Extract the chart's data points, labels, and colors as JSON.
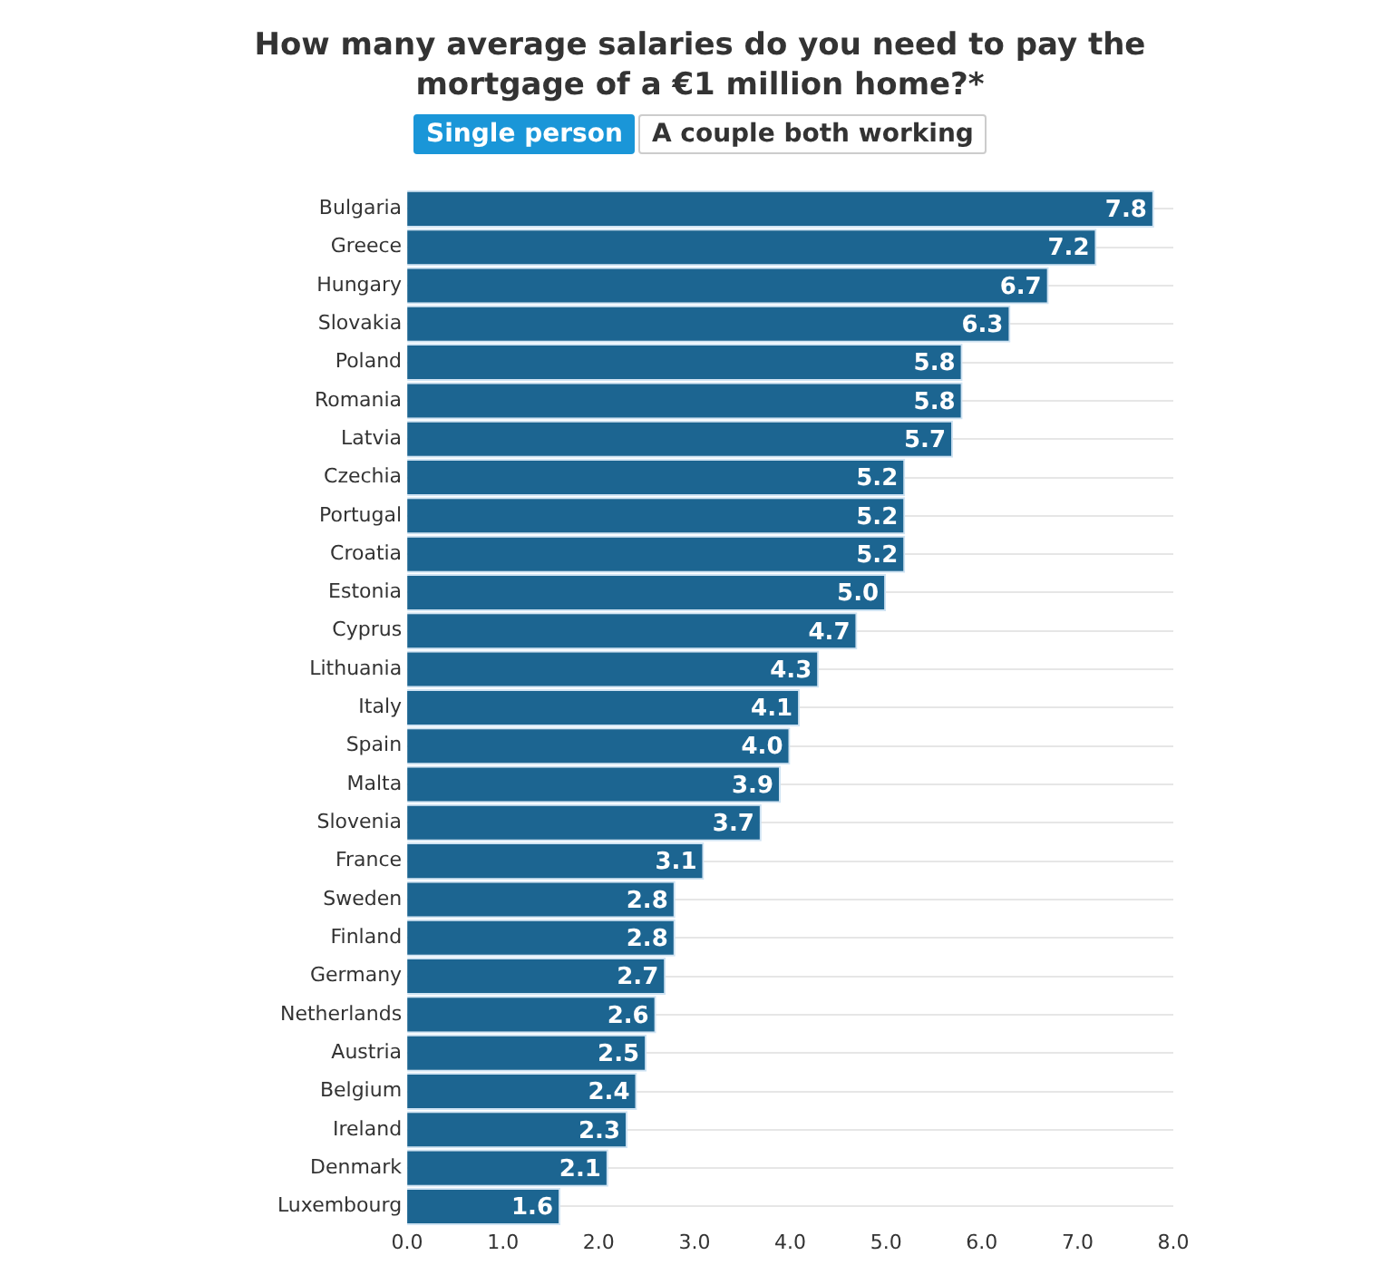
{
  "chart_data": {
    "type": "bar",
    "orientation": "horizontal",
    "title": "How many average salaries do you need to pay the mortgage of a €1 million home?*",
    "annotations": [
      "Single person",
      "A couple both working"
    ],
    "categories": [
      "Bulgaria",
      "Greece",
      "Hungary",
      "Slovakia",
      "Poland",
      "Romania",
      "Latvia",
      "Czechia",
      "Portugal",
      "Croatia",
      "Estonia",
      "Cyprus",
      "Lithuania",
      "Italy",
      "Spain",
      "Malta",
      "Slovenia",
      "France",
      "Sweden",
      "Finland",
      "Germany",
      "Netherlands",
      "Austria",
      "Belgium",
      "Ireland",
      "Denmark",
      "Luxembourg"
    ],
    "values": [
      7.8,
      7.2,
      6.7,
      6.3,
      5.8,
      5.8,
      5.7,
      5.2,
      5.2,
      5.2,
      5.0,
      4.7,
      4.3,
      4.1,
      4.0,
      3.9,
      3.7,
      3.1,
      2.8,
      2.8,
      2.7,
      2.6,
      2.5,
      2.4,
      2.3,
      2.1,
      1.6
    ],
    "value_labels": [
      "7.8",
      "7.2",
      "6.7",
      "6.3",
      "5.8",
      "5.8",
      "5.7",
      "5.2",
      "5.2",
      "5.2",
      "5.0",
      "4.7",
      "4.3",
      "4.1",
      "4.0",
      "3.9",
      "3.7",
      "3.1",
      "2.8",
      "2.8",
      "2.7",
      "2.6",
      "2.5",
      "2.4",
      "2.3",
      "2.1",
      "1.6"
    ],
    "color": "#1c6591",
    "xlim": [
      0,
      8
    ],
    "xticks": [
      {
        "value": 0,
        "label": "0.0"
      },
      {
        "value": 1,
        "label": "1.0"
      },
      {
        "value": 2,
        "label": "2.0"
      },
      {
        "value": 3,
        "label": "3.0"
      },
      {
        "value": 4,
        "label": "4.0"
      },
      {
        "value": 5,
        "label": "5.0"
      },
      {
        "value": 6,
        "label": "6.0"
      },
      {
        "value": 7,
        "label": "7.0"
      },
      {
        "value": 8,
        "label": "8.0"
      }
    ],
    "grid": "y",
    "legend": false
  }
}
